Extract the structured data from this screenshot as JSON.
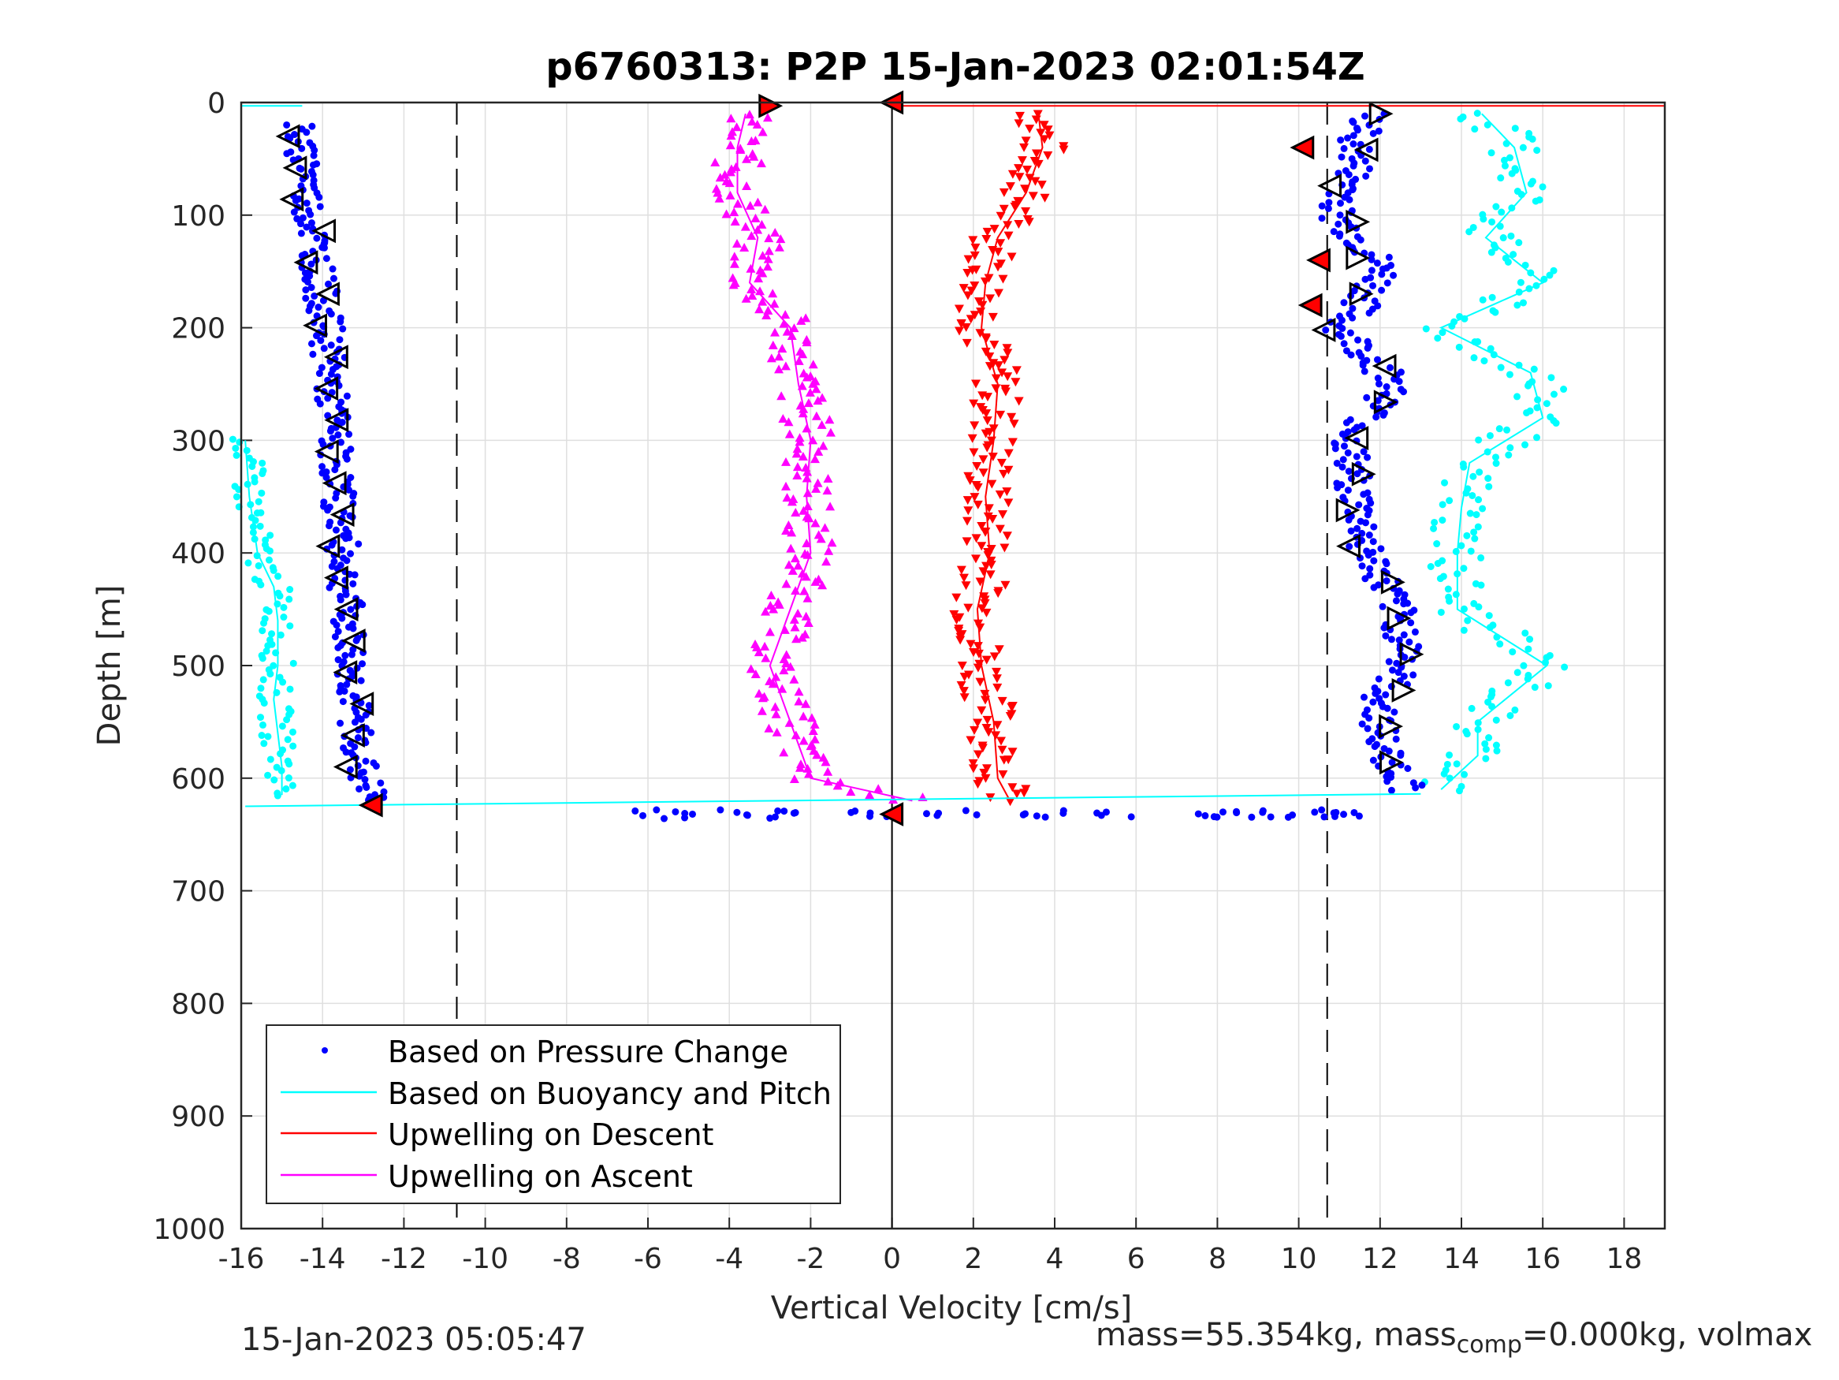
{
  "chart_data": {
    "type": "scatter",
    "title": "p6760313: P2P 15-Jan-2023 02:01:54Z",
    "xlabel": "Vertical Velocity [cm/s]",
    "ylabel": "Depth [m]",
    "xlim": [
      -16,
      19
    ],
    "ylim": [
      0,
      1000
    ],
    "y_reversed": true,
    "grid": true,
    "xticks": [
      "-16",
      "-14",
      "-12",
      "-10",
      "-8",
      "-6",
      "-4",
      "-2",
      "0",
      "2",
      "4",
      "6",
      "8",
      "10",
      "12",
      "14",
      "16",
      "18"
    ],
    "yticks": [
      "0",
      "100",
      "200",
      "300",
      "400",
      "500",
      "600",
      "700",
      "800",
      "900",
      "1000"
    ],
    "reference_lines": {
      "dashed_x": [
        -10.7,
        10.7
      ],
      "solid_x": [
        0
      ]
    },
    "legend": {
      "position": "bottom-left",
      "entries": [
        "Based on Pressure Change",
        "Based on Buoyancy and Pitch",
        "Upwelling on Descent",
        "Upwelling on Ascent"
      ]
    },
    "colors": {
      "pressure": "#0000ff",
      "buoyancy": "#00ffff",
      "descent": "#ff0000",
      "ascent": "#ff00ff",
      "axis": "#262626",
      "grid": "#dfdfdf"
    },
    "series": [
      {
        "key": "pressure_descent",
        "depth": [
          20,
          40,
          60,
          80,
          100,
          120,
          150,
          180,
          200,
          250,
          300,
          350,
          400,
          450,
          500,
          550,
          600,
          620
        ],
        "velocity": [
          -14.6,
          -14.6,
          -14.3,
          -14.4,
          -14.3,
          -14.2,
          -14.1,
          -14.0,
          -13.9,
          -13.8,
          -13.7,
          -13.6,
          -13.5,
          -13.4,
          -13.3,
          -13.2,
          -13.0,
          -12.7
        ]
      },
      {
        "key": "buoyancy_descent",
        "depth": [
          300,
          350,
          400,
          430,
          460,
          500,
          530,
          560,
          590,
          615
        ],
        "velocity": [
          -15.9,
          -15.8,
          -15.6,
          -15.2,
          -15.1,
          -15.1,
          -15.2,
          -15.1,
          -15.0,
          -15.0
        ]
      },
      {
        "key": "pressure_ascent",
        "depth": [
          10,
          40,
          70,
          100,
          120,
          150,
          180,
          200,
          250,
          300,
          350,
          400,
          450,
          490,
          530,
          570,
          610
        ],
        "velocity": [
          11.7,
          11.4,
          11.3,
          10.9,
          11.4,
          12.1,
          11.5,
          11.0,
          12.4,
          11.2,
          11.4,
          11.7,
          12.4,
          12.7,
          12.0,
          12.0,
          12.7
        ]
      },
      {
        "key": "buoyancy_ascent",
        "depth": [
          10,
          40,
          80,
          120,
          160,
          200,
          240,
          280,
          320,
          360,
          400,
          450,
          500,
          550,
          580,
          610
        ],
        "velocity": [
          14.5,
          15.3,
          15.6,
          14.6,
          16.0,
          13.5,
          15.7,
          16.0,
          14.2,
          14.0,
          13.9,
          13.9,
          16.1,
          14.4,
          14.4,
          13.5
        ]
      },
      {
        "key": "upwelling_descent",
        "depth": [
          10,
          40,
          80,
          120,
          160,
          200,
          250,
          300,
          350,
          400,
          450,
          500,
          550,
          600,
          620
        ],
        "velocity": [
          3.6,
          3.7,
          3.3,
          2.6,
          2.3,
          2.2,
          2.6,
          2.5,
          2.3,
          2.4,
          2.1,
          2.2,
          2.5,
          2.6,
          2.9
        ]
      },
      {
        "key": "upwelling_ascent",
        "depth": [
          10,
          40,
          80,
          120,
          160,
          200,
          250,
          300,
          350,
          400,
          450,
          500,
          550,
          600,
          620
        ],
        "velocity": [
          -3.6,
          -3.8,
          -3.8,
          -3.3,
          -3.5,
          -2.5,
          -2.3,
          -2.0,
          -2.1,
          -2.0,
          -2.5,
          -3.0,
          -2.5,
          -2.0,
          0.5
        ]
      }
    ]
  },
  "footer": {
    "timestamp": "15-Jan-2023 05:05:47",
    "mass_prefix": "mass=55.354kg, mass",
    "mass_sub": "comp",
    "mass_suffix": "=0.000kg, volmax"
  }
}
